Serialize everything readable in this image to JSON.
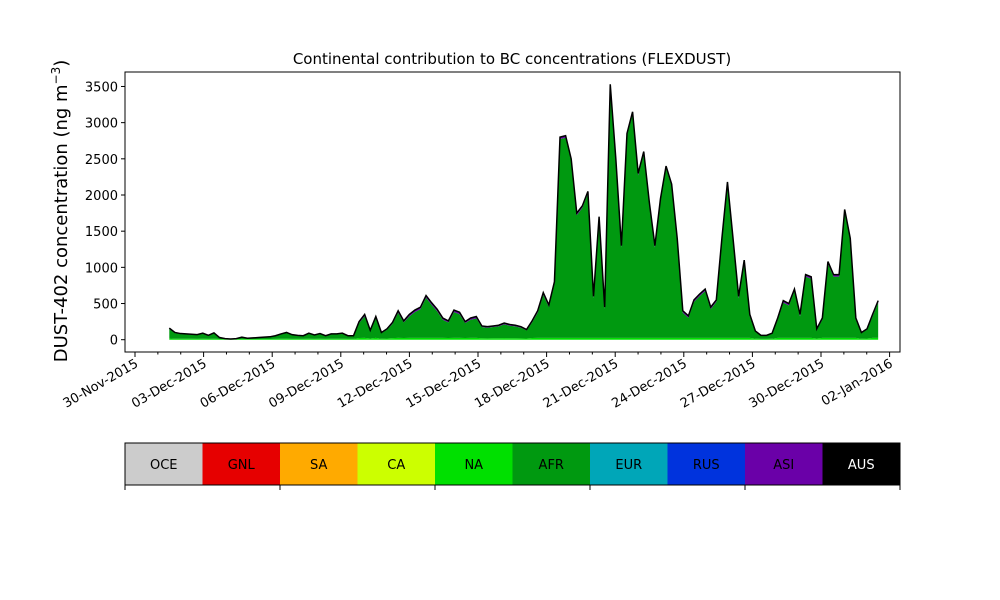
{
  "chart_data": {
    "type": "area",
    "title": "Continental contribution to BC concentrations (FLEXDUST)",
    "ylabel": "DUST-402 concentration (ng m",
    "ylabel_sup": "−3",
    "ylabel_close": ")",
    "ylim": [
      -170,
      3700
    ],
    "yticks": [
      "0",
      "500",
      "1000",
      "1500",
      "2000",
      "2500",
      "3000",
      "3500"
    ],
    "xticks": [
      "30-Nov-2015",
      "03-Dec-2015",
      "06-Dec-2015",
      "09-Dec-2015",
      "12-Dec-2015",
      "15-Dec-2015",
      "18-Dec-2015",
      "21-Dec-2015",
      "24-Dec-2015",
      "27-Dec-2015",
      "30-Dec-2015",
      "02-Jan-2016"
    ],
    "x_start": "2015-12-01 12:00",
    "x_end": "2016-01-01 12:00",
    "total_series": [
      160,
      100,
      85,
      80,
      75,
      70,
      90,
      60,
      95,
      30,
      15,
      10,
      15,
      35,
      20,
      25,
      30,
      35,
      40,
      55,
      80,
      100,
      70,
      60,
      55,
      90,
      65,
      85,
      55,
      80,
      80,
      90,
      55,
      55,
      250,
      350,
      130,
      320,
      100,
      150,
      240,
      400,
      260,
      350,
      410,
      450,
      610,
      510,
      420,
      300,
      260,
      410,
      380,
      250,
      300,
      320,
      190,
      180,
      190,
      200,
      230,
      210,
      200,
      180,
      140,
      260,
      400,
      650,
      480,
      800,
      2800,
      2820,
      2500,
      1750,
      1850,
      2050,
      600,
      1700,
      450,
      3530,
      2500,
      1300,
      2850,
      3150,
      2300,
      2600,
      1900,
      1300,
      1950,
      2400,
      2150,
      1400,
      400,
      330,
      550,
      630,
      700,
      450,
      550,
      1400,
      2180,
      1400,
      600,
      1100,
      350,
      120,
      60,
      60,
      90,
      300,
      540,
      500,
      700,
      350,
      900,
      870,
      150,
      300,
      1080,
      900,
      900,
      1800,
      1400,
      300,
      100,
      150,
      350,
      540
    ],
    "afr_frac": 0.92,
    "asi_small": 28,
    "legend": [
      {
        "label": "OCE",
        "color": "#cccccc",
        "text_color": "#000000"
      },
      {
        "label": "GNL",
        "color": "#e60000",
        "text_color": "#000000"
      },
      {
        "label": "SA",
        "color": "#ffaa00",
        "text_color": "#000000"
      },
      {
        "label": "CA",
        "color": "#ccff00",
        "text_color": "#000000"
      },
      {
        "label": "NA",
        "color": "#00e000",
        "text_color": "#000000"
      },
      {
        "label": "AFR",
        "color": "#009910",
        "text_color": "#000000"
      },
      {
        "label": "EUR",
        "color": "#00a6b8",
        "text_color": "#000000"
      },
      {
        "label": "RUS",
        "color": "#0033dd",
        "text_color": "#000000"
      },
      {
        "label": "ASI",
        "color": "#6a00a8",
        "text_color": "#000000"
      },
      {
        "label": "AUS",
        "color": "#000000",
        "text_color": "#ffffff"
      }
    ],
    "grid": false,
    "legend_placement": "bottom"
  }
}
